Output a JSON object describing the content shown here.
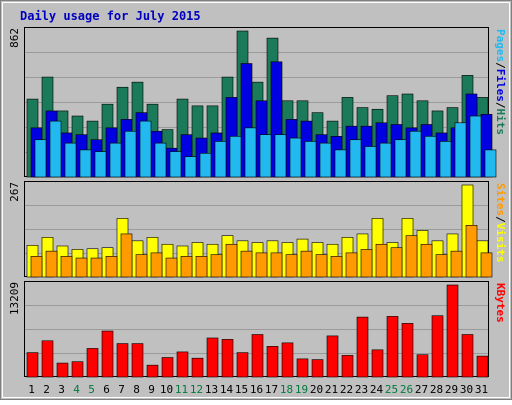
{
  "chart_data": {
    "type": "bar",
    "title": "Daily usage for July 2015",
    "colors": {
      "background": "#c0c0c0",
      "frame": "#ffffff",
      "title": "#0000c0",
      "hits": "#1a7a5a",
      "files": "#0000e0",
      "pages": "#22b8f0",
      "visits": "#ffff00",
      "sites": "#ff9a00",
      "kbytes": "#ff0000",
      "weekend_label": "#007a3c",
      "weekday_label": "#000000"
    },
    "categories": [
      "1",
      "2",
      "3",
      "4",
      "5",
      "6",
      "7",
      "8",
      "9",
      "10",
      "11",
      "12",
      "13",
      "14",
      "15",
      "16",
      "17",
      "18",
      "19",
      "20",
      "21",
      "22",
      "23",
      "24",
      "25",
      "26",
      "27",
      "28",
      "29",
      "30",
      "31"
    ],
    "weekend_days": [
      "4",
      "5",
      "11",
      "12",
      "18",
      "19",
      "25",
      "26"
    ],
    "panels": [
      {
        "id": "hits-files-pages",
        "ymax": 862,
        "max_label": "862",
        "legend": [
          "Pages",
          "/",
          "Files",
          "/",
          "Hits"
        ],
        "legend_color_keys": [
          "pages",
          "",
          "files",
          "",
          "hits"
        ],
        "series": [
          {
            "name": "Hits",
            "color_key": "hits",
            "values": [
              460,
              590,
              390,
              360,
              330,
              430,
              530,
              560,
              430,
              280,
              460,
              420,
              420,
              590,
              862,
              560,
              820,
              450,
              450,
              380,
              330,
              470,
              410,
              400,
              480,
              490,
              450,
              390,
              410,
              600,
              470
            ]
          },
          {
            "name": "Files",
            "color_key": "files",
            "values": [
              290,
              390,
              260,
              250,
              220,
              290,
              340,
              380,
              270,
              170,
              250,
              230,
              260,
              470,
              670,
              450,
              680,
              340,
              330,
              250,
              240,
              300,
              300,
              320,
              310,
              290,
              310,
              260,
              290,
              490,
              370
            ]
          },
          {
            "name": "Pages",
            "color_key": "pages",
            "values": [
              220,
              330,
              200,
              160,
              150,
              200,
              270,
              330,
              200,
              150,
              120,
              140,
              210,
              240,
              290,
              250,
              250,
              230,
              210,
              200,
              160,
              220,
              180,
              200,
              220,
              270,
              240,
              210,
              320,
              360,
              160
            ]
          }
        ]
      },
      {
        "id": "visits-sites",
        "ymax": 267,
        "max_label": "267",
        "legend": [
          "Sites",
          "/",
          "Visits"
        ],
        "legend_color_keys": [
          "sites",
          "",
          "visits"
        ],
        "series": [
          {
            "name": "Visits",
            "color_key": "visits",
            "values": [
              92,
              115,
              90,
              80,
              82,
              85,
              170,
              105,
              115,
              95,
              90,
              100,
              95,
              120,
              105,
              100,
              105,
              100,
              110,
              100,
              95,
              115,
              125,
              170,
              100,
              170,
              135,
              105,
              125,
              267,
              105
            ]
          },
          {
            "name": "Sites",
            "color_key": "sites",
            "values": [
              60,
              75,
              60,
              55,
              55,
              60,
              125,
              65,
              70,
              55,
              60,
              60,
              65,
              95,
              75,
              70,
              70,
              65,
              75,
              65,
              60,
              70,
              80,
              95,
              85,
              120,
              95,
              65,
              75,
              150,
              70
            ]
          }
        ]
      },
      {
        "id": "kbytes",
        "ymax": 13209,
        "max_label": "13209",
        "legend": [
          "KBytes"
        ],
        "legend_color_keys": [
          "kbytes"
        ],
        "series": [
          {
            "name": "KBytes",
            "color_key": "kbytes",
            "values": [
              3500,
              5200,
              2000,
              2200,
              4100,
              6600,
              4800,
              4800,
              1700,
              2800,
              3600,
              2700,
              5600,
              5400,
              3500,
              6100,
              4400,
              4900,
              2600,
              2500,
              5900,
              3100,
              8600,
              3900,
              8700,
              7700,
              3200,
              8800,
              13209,
              6100,
              3000
            ]
          }
        ]
      }
    ]
  }
}
